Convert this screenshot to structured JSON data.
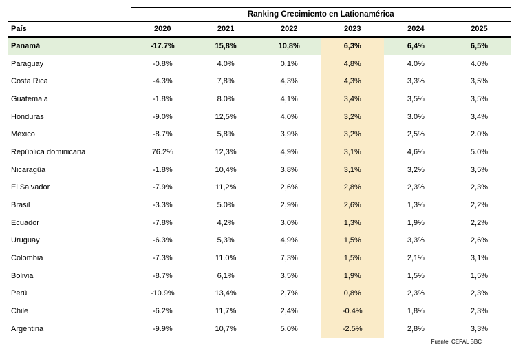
{
  "chart_data": {
    "type": "table",
    "title": "Ranking Crecimiento en Lationamérica",
    "country_header": "País",
    "year_headers": [
      "2020",
      "2021",
      "2022",
      "2023",
      "2024",
      "2025"
    ],
    "highlighted_year": "2023",
    "highlighted_year_index": 3,
    "highlighted_country": "Panamá",
    "rows": [
      {
        "country": "Panamá",
        "values": [
          "-17.7%",
          "15,8%",
          "10,8%",
          "6,3%",
          "6,4%",
          "6,5%"
        ]
      },
      {
        "country": "Paraguay",
        "values": [
          "-0.8%",
          "4.0%",
          "0,1%",
          "4,8%",
          "4.0%",
          "4.0%"
        ]
      },
      {
        "country": "Costa Rica",
        "values": [
          "-4.3%",
          "7,8%",
          "4,3%",
          "4,3%",
          "3,3%",
          "3,5%"
        ]
      },
      {
        "country": "Guatemala",
        "values": [
          "-1.8%",
          "8.0%",
          "4,1%",
          "3,4%",
          "3,5%",
          "3,5%"
        ]
      },
      {
        "country": "Honduras",
        "values": [
          "-9.0%",
          "12,5%",
          "4.0%",
          "3,2%",
          "3.0%",
          "3,4%"
        ]
      },
      {
        "country": "México",
        "values": [
          "-8.7%",
          "5,8%",
          "3,9%",
          "3,2%",
          "2,5%",
          "2.0%"
        ]
      },
      {
        "country": "República dominicana",
        "values": [
          "76.2%",
          "12,3%",
          "4,9%",
          "3,1%",
          "4,6%",
          "5.0%"
        ]
      },
      {
        "country": "Nicaragüa",
        "values": [
          "-1.8%",
          "10,4%",
          "3,8%",
          "3,1%",
          "3,2%",
          "3,5%"
        ]
      },
      {
        "country": "El Salvador",
        "values": [
          "-7.9%",
          "11,2%",
          "2,6%",
          "2,8%",
          "2,3%",
          "2,3%"
        ]
      },
      {
        "country": "Brasil",
        "values": [
          "-3.3%",
          "5.0%",
          "2,9%",
          "2,6%",
          "1,3%",
          "2,2%"
        ]
      },
      {
        "country": "Ecuador",
        "values": [
          "-7.8%",
          "4,2%",
          "3.0%",
          "1,3%",
          "1,9%",
          "2,2%"
        ]
      },
      {
        "country": "Uruguay",
        "values": [
          "-6.3%",
          "5,3%",
          "4,9%",
          "1,5%",
          "3,3%",
          "2,6%"
        ]
      },
      {
        "country": "Colombia",
        "values": [
          "-7.3%",
          "11.0%",
          "7,3%",
          "1,5%",
          "2,1%",
          "3,1%"
        ]
      },
      {
        "country": "Bolivia",
        "values": [
          "-8.7%",
          "6,1%",
          "3,5%",
          "1,9%",
          "1,5%",
          "1,5%"
        ]
      },
      {
        "country": "Perú",
        "values": [
          "-10.9%",
          "13,4%",
          "2,7%",
          "0,8%",
          "2,3%",
          "2,3%"
        ]
      },
      {
        "country": "Chile",
        "values": [
          "-6.2%",
          "11,7%",
          "2,4%",
          "-0.4%",
          "1,8%",
          "2,3%"
        ]
      },
      {
        "country": "Argentina",
        "values": [
          "-9.9%",
          "10,7%",
          "5.0%",
          "-2.5%",
          "2,8%",
          "3,3%"
        ]
      }
    ],
    "source": "Fuente: CEPAL BBC"
  },
  "colors": {
    "row_highlight": "#E2EFDA",
    "column_highlight": "#FAEBC8",
    "border": "#000000"
  }
}
